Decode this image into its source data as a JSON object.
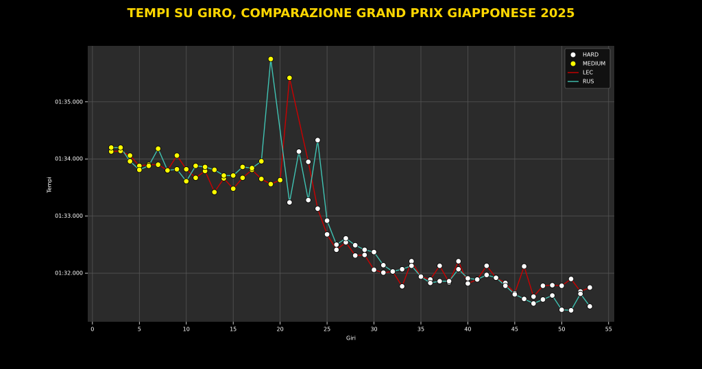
{
  "chart_data": {
    "type": "line",
    "title": "TEMPI SU GIRO, COMPARAZIONE GRAND PRIX GIAPPONESE 2025",
    "x_label": "Giri",
    "y_label": "Tempi",
    "xlim": [
      -0.5,
      55.6
    ],
    "xticks": [
      0,
      5,
      10,
      15,
      20,
      25,
      30,
      35,
      40,
      45,
      50,
      55
    ],
    "ylim": [
      91.15,
      95.98
    ],
    "yticks": [
      {
        "value": 92,
        "label": "01:32.000"
      },
      {
        "value": 93,
        "label": "01:33.000"
      },
      {
        "value": 94,
        "label": "01:34.000"
      },
      {
        "value": 95,
        "label": "01:35.000"
      }
    ],
    "grid": true,
    "legend": "upper right",
    "tyres": [
      {
        "name": "HARD",
        "color": "#ffffff"
      },
      {
        "name": "MEDIUM",
        "color": "#ffff00"
      }
    ],
    "series": [
      {
        "name": "LEC",
        "color": "#cc0000",
        "x": [
          2,
          3,
          4,
          5,
          6,
          7,
          8,
          9,
          10,
          11,
          12,
          13,
          14,
          15,
          16,
          17,
          18,
          19,
          20,
          21,
          23,
          24,
          25,
          26,
          27,
          28,
          29,
          30,
          31,
          32,
          33,
          34,
          35,
          36,
          37,
          38,
          39,
          40,
          41,
          42,
          43,
          44,
          45,
          46,
          47,
          48,
          49,
          50,
          51,
          52,
          53
        ],
        "values": [
          94.13,
          94.14,
          94.06,
          93.88,
          93.9,
          93.9,
          93.8,
          94.06,
          93.82,
          93.67,
          93.79,
          93.42,
          93.66,
          93.48,
          93.67,
          93.81,
          93.65,
          93.56,
          93.63,
          95.42,
          93.95,
          93.13,
          92.68,
          92.41,
          92.54,
          92.31,
          92.32,
          92.06,
          92.01,
          92.03,
          91.77,
          92.21,
          91.94,
          91.89,
          92.13,
          91.84,
          92.21,
          91.82,
          91.89,
          92.13,
          91.92,
          91.83,
          91.65,
          92.12,
          91.59,
          91.78,
          91.79,
          91.78,
          91.9,
          91.68,
          91.75
        ],
        "tyre": [
          "MEDIUM",
          "MEDIUM",
          "MEDIUM",
          "MEDIUM",
          "MEDIUM",
          "MEDIUM",
          "MEDIUM",
          "MEDIUM",
          "MEDIUM",
          "MEDIUM",
          "MEDIUM",
          "MEDIUM",
          "MEDIUM",
          "MEDIUM",
          "MEDIUM",
          "MEDIUM",
          "MEDIUM",
          "MEDIUM",
          "MEDIUM",
          "MEDIUM",
          "HARD",
          "HARD",
          "HARD",
          "HARD",
          "HARD",
          "HARD",
          "HARD",
          "HARD",
          "HARD",
          "HARD",
          "HARD",
          "HARD",
          "HARD",
          "HARD",
          "HARD",
          "HARD",
          "HARD",
          "HARD",
          "HARD",
          "HARD",
          "HARD",
          "HARD",
          "HARD",
          "HARD",
          "HARD",
          "HARD",
          "HARD",
          "HARD",
          "HARD",
          "HARD",
          "HARD"
        ]
      },
      {
        "name": "RUS",
        "color": "#40c4b4",
        "x": [
          2,
          3,
          4,
          5,
          6,
          7,
          8,
          9,
          10,
          11,
          12,
          13,
          14,
          15,
          16,
          17,
          18,
          19,
          21,
          22,
          23,
          24,
          25,
          26,
          27,
          28,
          29,
          30,
          31,
          32,
          33,
          34,
          35,
          36,
          37,
          38,
          39,
          40,
          41,
          42,
          43,
          44,
          45,
          46,
          47,
          48,
          49,
          50,
          51,
          52,
          53
        ],
        "values": [
          94.2,
          94.2,
          93.96,
          93.81,
          93.88,
          94.18,
          93.8,
          93.82,
          93.61,
          93.88,
          93.86,
          93.81,
          93.71,
          93.71,
          93.86,
          93.84,
          93.96,
          95.75,
          93.24,
          94.13,
          93.28,
          94.33,
          92.92,
          92.5,
          92.61,
          92.49,
          92.41,
          92.37,
          92.14,
          92.03,
          92.07,
          92.13,
          91.94,
          91.83,
          91.86,
          91.86,
          92.07,
          91.91,
          91.89,
          91.97,
          91.92,
          91.78,
          91.63,
          91.55,
          91.47,
          91.54,
          91.61,
          91.36,
          91.35,
          91.64,
          91.42
        ],
        "tyre": [
          "MEDIUM",
          "MEDIUM",
          "MEDIUM",
          "MEDIUM",
          "MEDIUM",
          "MEDIUM",
          "MEDIUM",
          "MEDIUM",
          "MEDIUM",
          "MEDIUM",
          "MEDIUM",
          "MEDIUM",
          "MEDIUM",
          "MEDIUM",
          "MEDIUM",
          "MEDIUM",
          "MEDIUM",
          "MEDIUM",
          "HARD",
          "HARD",
          "HARD",
          "HARD",
          "HARD",
          "HARD",
          "HARD",
          "HARD",
          "HARD",
          "HARD",
          "HARD",
          "HARD",
          "HARD",
          "HARD",
          "HARD",
          "HARD",
          "HARD",
          "HARD",
          "HARD",
          "HARD",
          "HARD",
          "HARD",
          "HARD",
          "HARD",
          "HARD",
          "HARD",
          "HARD",
          "HARD",
          "HARD",
          "HARD",
          "HARD",
          "HARD",
          "HARD"
        ]
      }
    ]
  }
}
